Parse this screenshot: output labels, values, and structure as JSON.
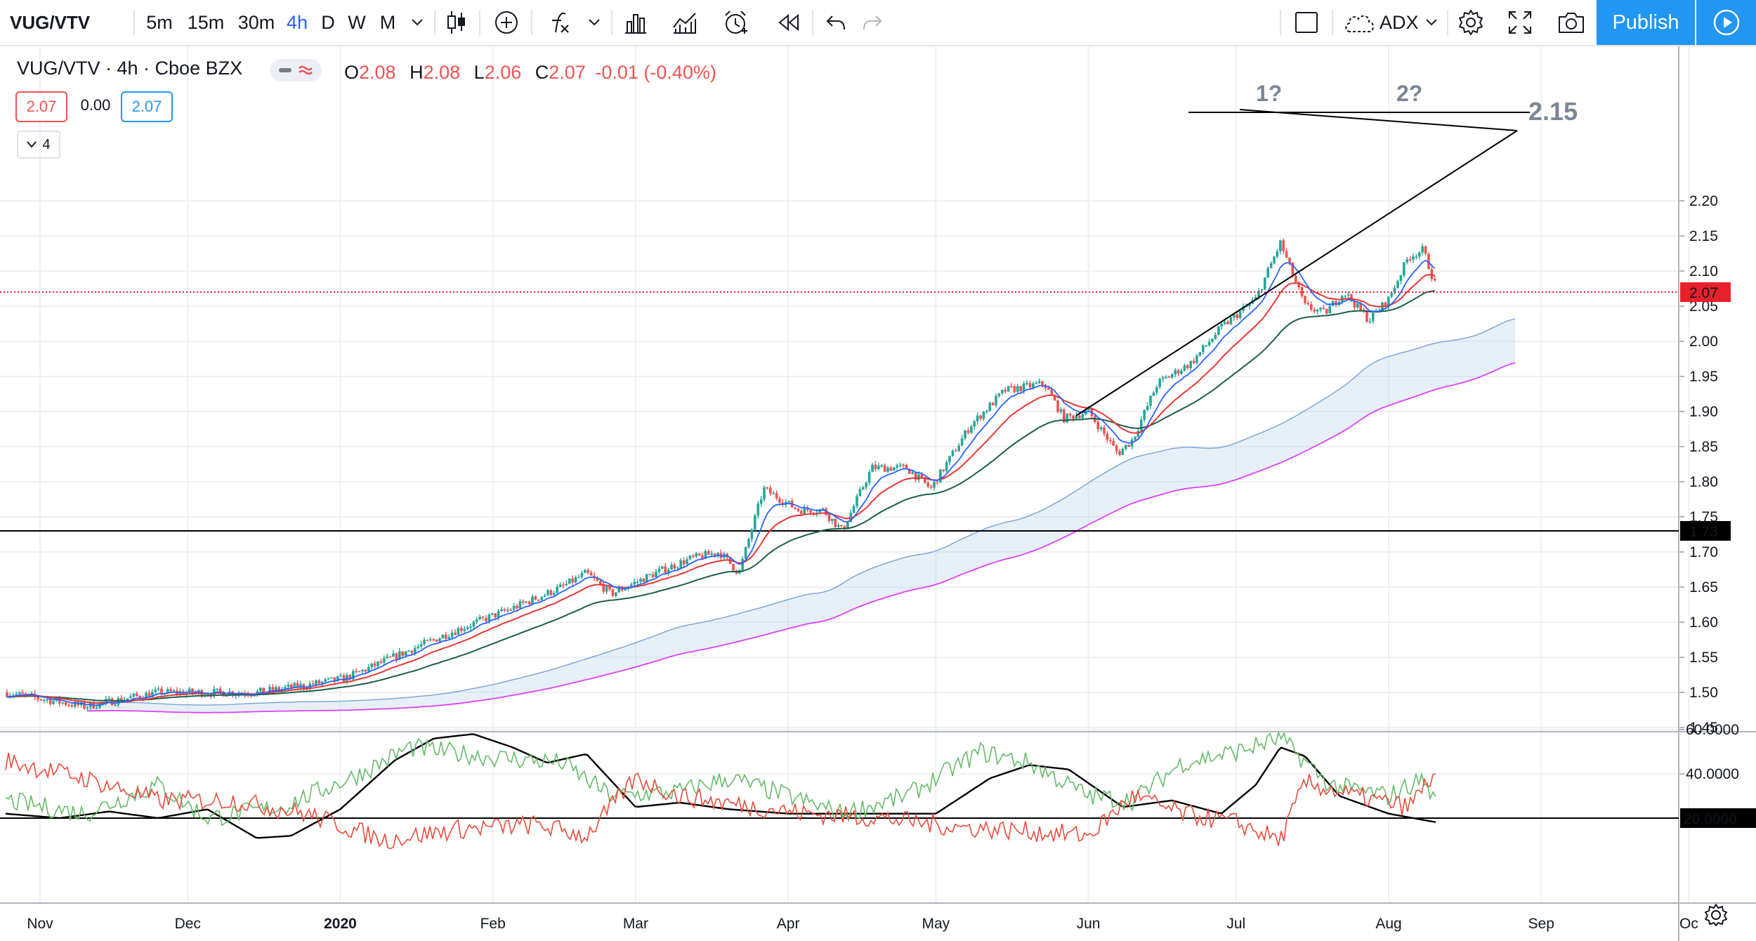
{
  "toolbar": {
    "symbol": "VUG/VTV",
    "intervals": [
      "5m",
      "15m",
      "30m",
      "4h",
      "D",
      "W",
      "M"
    ],
    "active_interval": "4h",
    "indicator_name": "ADX",
    "publish_label": "Publish"
  },
  "legend": {
    "title": "VUG/VTV · 4h · Cboe BZX",
    "open_label": "O",
    "open": "2.08",
    "high_label": "H",
    "high": "2.08",
    "low_label": "L",
    "low": "2.06",
    "close_label": "C",
    "close": "2.07",
    "change": "-0.01 (-0.40%)",
    "bid": "2.07",
    "spread": "0.00",
    "ask": "2.07",
    "collapsed_count": "4"
  },
  "annotations": {
    "peak1": "1?",
    "peak2": "2?",
    "resistance_label": "2.15"
  },
  "colors": {
    "up": "#26a69a",
    "down": "#ef5350",
    "fast_ma": "#2962ff",
    "mid_ma": "#e53935",
    "slow_ma": "#1b5e4b",
    "cloud": "#bbd4ee",
    "cloud_lower": "#e040fb",
    "plus_di": "#66bb6a",
    "minus_di": "#e74c3c",
    "adx": "#000000",
    "price_tag": "#e8212b",
    "toolbar_accent": "#2196f3"
  },
  "chart_data": [
    {
      "type": "candlestick",
      "title": "VUG/VTV · 4h · Cboe BZX",
      "x_ticks": [
        "Nov",
        "Dec",
        "2020",
        "Feb",
        "Mar",
        "Apr",
        "May",
        "Jun",
        "Jul",
        "Aug",
        "Sep",
        "Oc"
      ],
      "y_ticks": [
        "2.20",
        "2.15",
        "2.10",
        "2.05",
        "2.00",
        "1.95",
        "1.90",
        "1.85",
        "1.80",
        "1.75",
        "1.70",
        "1.65",
        "1.60",
        "1.55",
        "1.50",
        "1.45"
      ],
      "ylim": [
        1.45,
        2.21
      ],
      "last_price": "2.07",
      "horizontal_line": "1.73",
      "close_trend": [
        [
          "2019-10-25",
          1.5
        ],
        [
          "2019-11-10",
          1.48
        ],
        [
          "2019-11-25",
          1.5
        ],
        [
          "2019-12-05",
          1.5
        ],
        [
          "2019-12-15",
          1.5
        ],
        [
          "2019-12-25",
          1.51
        ],
        [
          "2020-01-02",
          1.52
        ],
        [
          "2020-01-15",
          1.56
        ],
        [
          "2020-01-25",
          1.59
        ],
        [
          "2020-02-05",
          1.62
        ],
        [
          "2020-02-15",
          1.65
        ],
        [
          "2020-02-20",
          1.67
        ],
        [
          "2020-02-25",
          1.64
        ],
        [
          "2020-03-05",
          1.67
        ],
        [
          "2020-03-12",
          1.69
        ],
        [
          "2020-03-18",
          1.7
        ],
        [
          "2020-03-22",
          1.67
        ],
        [
          "2020-03-27",
          1.79
        ],
        [
          "2020-04-03",
          1.76
        ],
        [
          "2020-04-08",
          1.76
        ],
        [
          "2020-04-12",
          1.73
        ],
        [
          "2020-04-18",
          1.82
        ],
        [
          "2020-04-25",
          1.82
        ],
        [
          "2020-04-30",
          1.79
        ],
        [
          "2020-05-08",
          1.88
        ],
        [
          "2020-05-15",
          1.93
        ],
        [
          "2020-05-23",
          1.94
        ],
        [
          "2020-05-27",
          1.89
        ],
        [
          "2020-06-01",
          1.9
        ],
        [
          "2020-06-07",
          1.84
        ],
        [
          "2020-06-10",
          1.86
        ],
        [
          "2020-06-15",
          1.94
        ],
        [
          "2020-06-22",
          1.97
        ],
        [
          "2020-06-28",
          2.02
        ],
        [
          "2020-07-05",
          2.06
        ],
        [
          "2020-07-10",
          2.14
        ],
        [
          "2020-07-15",
          2.05
        ],
        [
          "2020-07-19",
          2.04
        ],
        [
          "2020-07-23",
          2.07
        ],
        [
          "2020-07-28",
          2.03
        ],
        [
          "2020-08-01",
          2.06
        ],
        [
          "2020-08-05",
          2.12
        ],
        [
          "2020-08-08",
          2.13
        ],
        [
          "2020-08-11",
          2.07
        ]
      ],
      "indicators": [
        "EMA fast",
        "EMA mid",
        "EMA slow",
        "Ichimoku cloud"
      ]
    },
    {
      "type": "line",
      "title": "ADX",
      "y_ticks": [
        "60.0000",
        "40.0000",
        "20.0000"
      ],
      "ylim": [
        0,
        70
      ],
      "horizontal_line": "20.0000",
      "series": [
        {
          "name": "ADX",
          "points": [
            [
              "2019-10-25",
              22
            ],
            [
              "2019-11-05",
              20
            ],
            [
              "2019-11-15",
              23
            ],
            [
              "2019-11-25",
              20
            ],
            [
              "2019-12-05",
              24
            ],
            [
              "2019-12-15",
              11
            ],
            [
              "2019-12-22",
              12
            ],
            [
              "2020-01-01",
              24
            ],
            [
              "2020-01-12",
              46
            ],
            [
              "2020-01-20",
              56
            ],
            [
              "2020-01-28",
              58
            ],
            [
              "2020-02-05",
              52
            ],
            [
              "2020-02-12",
              45
            ],
            [
              "2020-02-20",
              49
            ],
            [
              "2020-03-01",
              25
            ],
            [
              "2020-03-10",
              27
            ],
            [
              "2020-03-20",
              24
            ],
            [
              "2020-04-01",
              22
            ],
            [
              "2020-04-10",
              22
            ],
            [
              "2020-04-20",
              22
            ],
            [
              "2020-05-01",
              22
            ],
            [
              "2020-05-12",
              38
            ],
            [
              "2020-05-20",
              44
            ],
            [
              "2020-05-28",
              42
            ],
            [
              "2020-06-08",
              25
            ],
            [
              "2020-06-18",
              28
            ],
            [
              "2020-06-28",
              22
            ],
            [
              "2020-07-05",
              35
            ],
            [
              "2020-07-10",
              52
            ],
            [
              "2020-07-15",
              48
            ],
            [
              "2020-07-22",
              30
            ],
            [
              "2020-08-01",
              22
            ],
            [
              "2020-08-11",
              18
            ]
          ]
        },
        {
          "name": "+DI",
          "points": [
            [
              "2019-10-25",
              28
            ],
            [
              "2019-11-10",
              22
            ],
            [
              "2019-11-25",
              35
            ],
            [
              "2019-12-05",
              20
            ],
            [
              "2019-12-20",
              25
            ],
            [
              "2020-01-05",
              40
            ],
            [
              "2020-01-15",
              52
            ],
            [
              "2020-01-30",
              48
            ],
            [
              "2020-02-15",
              45
            ],
            [
              "2020-02-25",
              30
            ],
            [
              "2020-03-10",
              32
            ],
            [
              "2020-03-20",
              38
            ],
            [
              "2020-04-01",
              30
            ],
            [
              "2020-04-12",
              22
            ],
            [
              "2020-04-25",
              30
            ],
            [
              "2020-05-10",
              50
            ],
            [
              "2020-05-20",
              45
            ],
            [
              "2020-06-01",
              30
            ],
            [
              "2020-06-10",
              28
            ],
            [
              "2020-06-20",
              45
            ],
            [
              "2020-07-01",
              50
            ],
            [
              "2020-07-10",
              56
            ],
            [
              "2020-07-20",
              35
            ],
            [
              "2020-08-01",
              30
            ],
            [
              "2020-08-08",
              38
            ],
            [
              "2020-08-11",
              25
            ]
          ]
        },
        {
          "name": "-DI",
          "points": [
            [
              "2019-10-25",
              46
            ],
            [
              "2019-11-10",
              38
            ],
            [
              "2019-11-25",
              28
            ],
            [
              "2019-12-10",
              28
            ],
            [
              "2019-12-25",
              22
            ],
            [
              "2020-01-10",
              10
            ],
            [
              "2020-01-25",
              15
            ],
            [
              "2020-02-10",
              17
            ],
            [
              "2020-02-20",
              12
            ],
            [
              "2020-03-01",
              38
            ],
            [
              "2020-03-10",
              30
            ],
            [
              "2020-03-22",
              26
            ],
            [
              "2020-04-05",
              22
            ],
            [
              "2020-04-20",
              20
            ],
            [
              "2020-05-05",
              16
            ],
            [
              "2020-05-20",
              14
            ],
            [
              "2020-06-01",
              12
            ],
            [
              "2020-06-10",
              30
            ],
            [
              "2020-06-20",
              22
            ],
            [
              "2020-07-01",
              18
            ],
            [
              "2020-07-10",
              10
            ],
            [
              "2020-07-15",
              36
            ],
            [
              "2020-07-25",
              30
            ],
            [
              "2020-08-05",
              25
            ],
            [
              "2020-08-11",
              42
            ]
          ]
        }
      ]
    }
  ]
}
